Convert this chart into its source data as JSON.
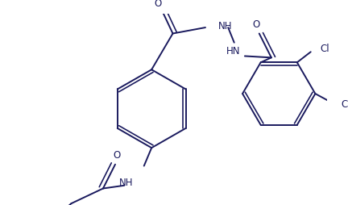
{
  "background_color": "#ffffff",
  "line_color": "#1a1a5e",
  "text_color": "#1a1a5e",
  "lw": 1.4,
  "figsize": [
    4.32,
    2.54
  ],
  "dpi": 100,
  "xlim": [
    0,
    432
  ],
  "ylim": [
    0,
    254
  ]
}
